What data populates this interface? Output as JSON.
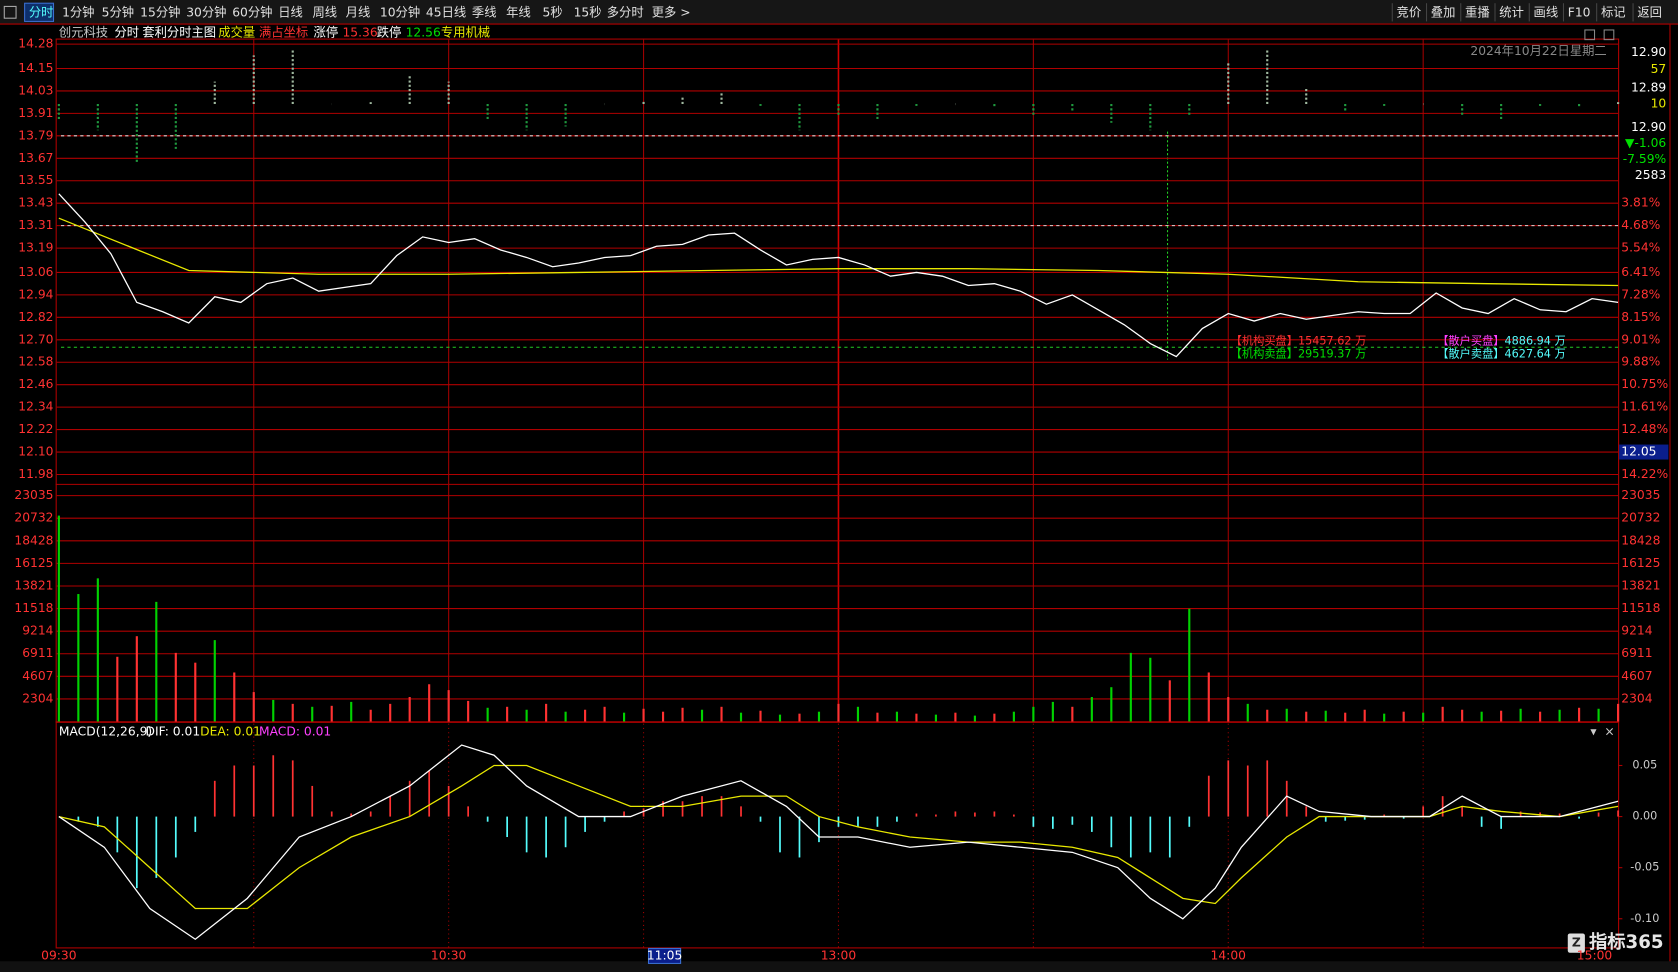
{
  "toolbar": {
    "tabs": [
      "分时",
      "1分钟",
      "5分钟",
      "15分钟",
      "30分钟",
      "60分钟",
      "日线",
      "周线",
      "月线",
      "10分钟",
      "45日线",
      "季线",
      "年线",
      "5秒",
      "15秒",
      "多分时",
      "更多 >"
    ],
    "buttons": [
      "竞价",
      "叠加",
      "重播",
      "统计",
      "画线",
      "F10",
      "标记",
      "返回"
    ]
  },
  "info": {
    "stock": "创元科技",
    "period": "分时",
    "main_chart": "套利分时主图",
    "volume": "成交量",
    "coordinate": "满占坐标",
    "limit_up_label": "涨停",
    "limit_up": "15.36",
    "limit_down_label": "跌停",
    "limit_down": "12.56",
    "industry": "专用机械"
  },
  "date": "2024年10月22日星期二",
  "quote": [
    "12.90",
    "57",
    "12.89",
    "10",
    "12.90",
    "▼-1.06",
    "-7.59%",
    "2583"
  ],
  "price_panel": {
    "ylim": [
      11.93,
      14.31
    ],
    "yticks": [
      14.28,
      14.15,
      14.03,
      13.91,
      13.79,
      13.67,
      13.55,
      13.43,
      13.31,
      13.19,
      13.06,
      12.94,
      12.82,
      {
        "value": 12.7,
        "label": "12.70"
      },
      12.58,
      12.46,
      12.34,
      12.22,
      {
        "value": 12.1,
        "label": "12.10"
      },
      11.98
    ],
    "pct_labels": [
      null,
      null,
      null,
      null,
      null,
      null,
      null,
      "3.81%",
      "4.68%",
      "5.54%",
      "6.41%",
      "7.28%",
      "8.15%",
      "9.01%",
      "9.88%",
      "10.75%",
      "11.61%",
      "12.48%",
      null,
      "14.22%"
    ],
    "cursor_label": "12.05",
    "reference_lines": [
      {
        "value": 13.79,
        "color": "#d8d8d8"
      },
      {
        "value": 13.31,
        "color": "#d8d8d8"
      },
      {
        "value": 12.66,
        "color": "#22cc22"
      }
    ],
    "price": {
      "color": "#ffffff",
      "minute_step": 4,
      "values": [
        13.48,
        13.33,
        13.16,
        12.9,
        12.85,
        12.79,
        12.93,
        12.9,
        13.0,
        13.03,
        12.96,
        12.98,
        13.0,
        13.15,
        13.25,
        13.22,
        13.24,
        13.18,
        13.14,
        13.09,
        13.11,
        13.14,
        13.15,
        13.2,
        13.21,
        13.26,
        13.27,
        13.18,
        13.1,
        13.13,
        13.14,
        13.1,
        13.04,
        13.06,
        13.04,
        12.99,
        13.0,
        12.96,
        12.89,
        12.94,
        12.86,
        12.78,
        12.68,
        12.61,
        12.76,
        12.84,
        12.8,
        12.84,
        12.81,
        12.83,
        12.85,
        12.84,
        12.84,
        12.95,
        12.87,
        12.84,
        12.92,
        12.86,
        12.85,
        12.92,
        12.9
      ]
    },
    "average": {
      "color": "#e8e800",
      "minute_step": 20,
      "values": [
        13.35,
        13.07,
        13.05,
        13.05,
        13.06,
        13.07,
        13.08,
        13.08,
        13.07,
        13.05,
        13.01,
        13.0,
        12.99
      ]
    },
    "flow": {
      "base": 13.96,
      "minute_step": 6,
      "colors": {
        "u": "#9fb89f",
        "d": "#1f9a3f"
      },
      "values": [
        13.88,
        13.82,
        13.65,
        13.72,
        14.08,
        14.22,
        14.25,
        13.96,
        13.97,
        14.12,
        14.08,
        13.88,
        13.82,
        13.84,
        13.96,
        13.98,
        14.0,
        14.02,
        13.95,
        13.82,
        13.9,
        13.88,
        13.95,
        13.96,
        13.94,
        13.9,
        13.92,
        13.86,
        13.82,
        13.9,
        14.18,
        14.25,
        14.05,
        13.92,
        13.95,
        13.96,
        13.9,
        13.88,
        13.95,
        13.94,
        13.97
      ]
    }
  },
  "volume_panel": {
    "ylim": [
      0,
      24236
    ],
    "yticks": [
      23035,
      20732,
      18428,
      16125,
      13821,
      11518,
      9214,
      6911,
      4607,
      2304
    ],
    "minute_step": 3,
    "colors": {
      "u": "#ff3232",
      "d": "#00d200"
    },
    "values": [
      21000,
      13000,
      14600,
      6600,
      8700,
      12200,
      7000,
      6000,
      8300,
      5000,
      3000,
      2200,
      1800,
      1500,
      1600,
      2000,
      1200,
      1800,
      2500,
      3800,
      3200,
      2100,
      1400,
      1500,
      1200,
      1800,
      1000,
      1200,
      1500,
      900,
      1300,
      1000,
      1400,
      1200,
      1500,
      900,
      1100,
      700,
      800,
      1000,
      1800,
      1500,
      900,
      1000,
      800,
      700,
      900,
      600,
      800,
      1000,
      1500,
      2000,
      1500,
      2500,
      3500,
      7000,
      6500,
      4200,
      11500,
      5000,
      2500,
      1800,
      1200,
      1300,
      1000,
      1100,
      900,
      1200,
      800,
      1000,
      900,
      1500,
      1200,
      1000,
      1100,
      1300,
      1000,
      1200,
      1400,
      1300,
      1800
    ],
    "directions": [
      "d",
      "d",
      "d",
      "u",
      "u",
      "d",
      "u",
      "u",
      "d",
      "u",
      "u",
      "d",
      "u",
      "d",
      "u",
      "d",
      "u",
      "u",
      "u",
      "u",
      "u",
      "u",
      "d",
      "u",
      "d",
      "u",
      "d",
      "u",
      "u",
      "d",
      "u",
      "u",
      "u",
      "d",
      "u",
      "d",
      "u",
      "d",
      "u",
      "d",
      "u",
      "d",
      "u",
      "d",
      "u",
      "d",
      "u",
      "d",
      "u",
      "d",
      "d",
      "d",
      "u",
      "d",
      "d",
      "d",
      "d",
      "u",
      "d",
      "u",
      "u",
      "d",
      "u",
      "d",
      "u",
      "d",
      "u",
      "u",
      "d",
      "u",
      "d",
      "u",
      "u",
      "d",
      "u",
      "d",
      "u",
      "d",
      "u",
      "d",
      "u"
    ]
  },
  "macd_panel": {
    "title": "MACD(12,26,9)",
    "dif_label": "DIF: 0.01",
    "dea_label": "DEA: 0.01",
    "macd_label": "MACD: 0.01",
    "ylim": [
      -0.128,
      0.092
    ],
    "yticks": [
      0.05,
      {
        "value": 0,
        "label": "0.00"
      },
      -0.05,
      {
        "value": -0.1,
        "label": "-0.10"
      }
    ],
    "x": [
      0,
      7,
      14,
      21,
      29,
      37,
      45,
      54,
      62,
      67,
      72,
      80,
      88,
      96,
      105,
      112,
      117,
      123,
      131,
      140,
      148,
      156,
      163,
      168,
      173,
      178,
      182,
      189,
      194,
      202,
      211,
      216,
      222,
      231,
      240
    ],
    "dif": {
      "color": "#ffffff",
      "values": [
        0.0,
        -0.03,
        -0.09,
        -0.12,
        -0.08,
        -0.02,
        0.0,
        0.03,
        0.07,
        0.06,
        0.03,
        0.0,
        0.0,
        0.02,
        0.035,
        0.01,
        -0.02,
        -0.02,
        -0.03,
        -0.025,
        -0.03,
        -0.035,
        -0.05,
        -0.08,
        -0.1,
        -0.07,
        -0.03,
        0.02,
        0.005,
        0.0,
        0.0,
        0.02,
        0.0,
        0.0,
        0.015
      ]
    },
    "dea": {
      "color": "#e8e800",
      "values": [
        0.0,
        -0.01,
        -0.05,
        -0.09,
        -0.09,
        -0.05,
        -0.02,
        0.0,
        0.03,
        0.05,
        0.05,
        0.03,
        0.01,
        0.01,
        0.02,
        0.02,
        0.0,
        -0.01,
        -0.02,
        -0.025,
        -0.025,
        -0.03,
        -0.04,
        -0.06,
        -0.08,
        -0.085,
        -0.06,
        -0.02,
        0.0,
        0.0,
        0.0,
        0.01,
        0.005,
        0.0,
        0.01
      ]
    },
    "hist": {
      "minute_step": 3,
      "colors": {
        "u": "#ff3232",
        "d": "#54fcfc"
      },
      "values": [
        0,
        -0.005,
        -0.01,
        -0.035,
        -0.07,
        -0.06,
        -0.04,
        -0.015,
        0.035,
        0.05,
        0.05,
        0.06,
        0.055,
        0.03,
        0.005,
        0.003,
        0.005,
        0.02,
        0.035,
        0.045,
        0.03,
        0.01,
        -0.005,
        -0.02,
        -0.035,
        -0.04,
        -0.03,
        -0.015,
        -0.005,
        0.005,
        0.008,
        0.015,
        0.015,
        0.02,
        0.02,
        0.01,
        -0.005,
        -0.035,
        -0.04,
        -0.025,
        -0.01,
        -0.01,
        -0.01,
        -0.005,
        0.003,
        0.002,
        0.005,
        0.004,
        0.005,
        0.002,
        -0.01,
        -0.012,
        -0.008,
        -0.015,
        -0.03,
        -0.04,
        -0.035,
        -0.04,
        -0.01,
        0.04,
        0.055,
        0.05,
        0.055,
        0.035,
        0.01,
        -0.005,
        -0.004,
        -0.003,
        0.002,
        -0.002,
        0.01,
        0.02,
        0.01,
        -0.01,
        -0.012,
        0.005,
        0.004,
        0.003,
        -0.002,
        0.004,
        0.006
      ]
    }
  },
  "time_axis": {
    "labels": [
      "09:30",
      "10:30",
      "13:00",
      "14:00",
      "15:00"
    ],
    "cursor": "11:05"
  },
  "annotations": [
    {
      "label": "【机构买盘】",
      "value": "15457.62 万"
    },
    {
      "label": "【机构卖盘】",
      "value": "29519.37 万"
    },
    {
      "label": "【散户买盘】",
      "value": "4886.94 万"
    },
    {
      "label": "【散户卖盘】",
      "value": "4627.64 万"
    }
  ],
  "brand": "指标365"
}
